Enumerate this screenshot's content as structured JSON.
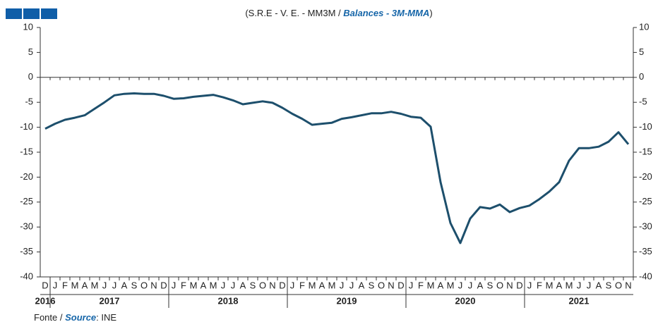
{
  "chart_data": {
    "type": "line",
    "title": "(S.R.E - V. E. - MM3M / ",
    "title_en": "Balances - 3M-MMA",
    "title_close": ")",
    "source_prefix": "Fonte / ",
    "source_en": "Source",
    "source_suffix": ": INE",
    "categories": [
      "D",
      "J",
      "F",
      "M",
      "A",
      "M",
      "J",
      "J",
      "A",
      "S",
      "O",
      "N",
      "D",
      "J",
      "F",
      "M",
      "A",
      "M",
      "J",
      "J",
      "A",
      "S",
      "O",
      "N",
      "D",
      "J",
      "F",
      "M",
      "A",
      "M",
      "J",
      "J",
      "A",
      "S",
      "O",
      "N",
      "D",
      "J",
      "F",
      "M",
      "A",
      "M",
      "J",
      "J",
      "A",
      "S",
      "O",
      "N",
      "D",
      "J",
      "F",
      "M",
      "A",
      "M",
      "J",
      "J",
      "A",
      "S",
      "O",
      "N"
    ],
    "year_groups": [
      {
        "label": "2016",
        "count": 1
      },
      {
        "label": "2017",
        "count": 12
      },
      {
        "label": "2018",
        "count": 12
      },
      {
        "label": "2019",
        "count": 12
      },
      {
        "label": "2020",
        "count": 12
      },
      {
        "label": "2021",
        "count": 11
      }
    ],
    "series": [
      {
        "name": "Balances - 3M-MMA",
        "color": "#1d4f6c",
        "values": [
          -10.3,
          -9.3,
          -8.5,
          -8.1,
          -7.6,
          -6.3,
          -5.0,
          -3.6,
          -3.3,
          -3.2,
          -3.3,
          -3.3,
          -3.7,
          -4.3,
          -4.2,
          -3.9,
          -3.7,
          -3.5,
          -4.0,
          -4.6,
          -5.4,
          -5.1,
          -4.8,
          -5.1,
          -6.1,
          -7.3,
          -8.3,
          -9.5,
          -9.3,
          -9.1,
          -8.3,
          -8.0,
          -7.6,
          -7.2,
          -7.2,
          -6.9,
          -7.3,
          -7.9,
          -8.1,
          -9.9,
          -21.0,
          -29.2,
          -33.2,
          -28.3,
          -26.0,
          -26.3,
          -25.5,
          -27.0,
          -26.2,
          -25.7,
          -24.4,
          -22.9,
          -21.0,
          -16.7,
          -14.2,
          -14.2,
          -13.9,
          -12.9,
          -11.0,
          -13.4
        ]
      }
    ],
    "ylim": [
      -40,
      10
    ],
    "yticks": [
      10,
      5,
      0,
      -5,
      -10,
      -15,
      -20,
      -25,
      -30,
      -35,
      -40
    ]
  }
}
